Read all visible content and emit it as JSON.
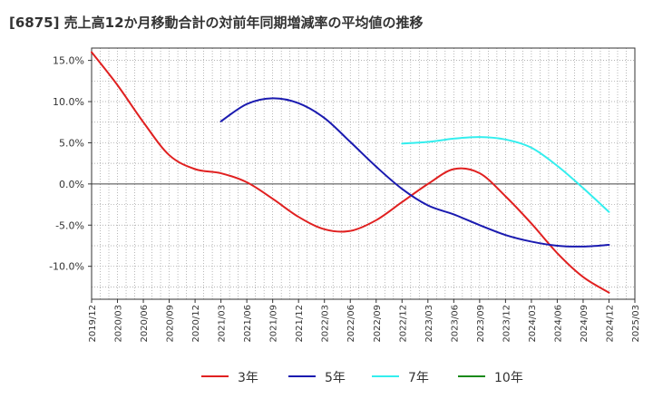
{
  "chart_data": {
    "type": "line",
    "title": "[6875]  売上高12か月移動合計の対前年同期増減率の平均値の推移",
    "xlabel": "",
    "ylabel": "",
    "x_ticks": [
      "2019/12",
      "2020/03",
      "2020/06",
      "2020/09",
      "2020/12",
      "2021/03",
      "2021/06",
      "2021/09",
      "2021/12",
      "2022/03",
      "2022/06",
      "2022/09",
      "2022/12",
      "2023/03",
      "2023/06",
      "2023/09",
      "2023/12",
      "2024/03",
      "2024/06",
      "2024/09",
      "2024/12",
      "2025/03"
    ],
    "y_ticks": [
      "15.0%",
      "10.0%",
      "5.0%",
      "0.0%",
      "-5.0%",
      "-10.0%"
    ],
    "ylim": [
      -14.0,
      16.5
    ],
    "grid": true,
    "legend_position": "bottom",
    "series": [
      {
        "name": "3年",
        "color": "#e02020",
        "x": [
          "2019/12",
          "2020/03",
          "2020/06",
          "2020/09",
          "2020/12",
          "2021/03",
          "2021/06",
          "2021/09",
          "2021/12",
          "2022/03",
          "2022/06",
          "2022/09",
          "2022/12",
          "2023/03",
          "2023/06",
          "2023/09",
          "2023/12",
          "2024/03",
          "2024/06",
          "2024/09",
          "2024/12"
        ],
        "values": [
          16.0,
          12.0,
          7.5,
          3.5,
          1.8,
          1.3,
          0.2,
          -1.8,
          -4.0,
          -5.5,
          -5.7,
          -4.4,
          -2.2,
          0.0,
          1.8,
          1.3,
          -1.5,
          -4.8,
          -8.4,
          -11.3,
          -13.2
        ]
      },
      {
        "name": "5年",
        "color": "#1a1ab0",
        "x": [
          "2021/03",
          "2021/06",
          "2021/09",
          "2021/12",
          "2022/03",
          "2022/06",
          "2022/09",
          "2022/12",
          "2023/03",
          "2023/06",
          "2023/09",
          "2023/12",
          "2024/03",
          "2024/06",
          "2024/09",
          "2024/12"
        ],
        "values": [
          7.6,
          9.7,
          10.4,
          9.8,
          8.0,
          5.1,
          2.1,
          -0.6,
          -2.6,
          -3.7,
          -5.0,
          -6.2,
          -7.0,
          -7.5,
          -7.6,
          -7.4
        ]
      },
      {
        "name": "7年",
        "color": "#33eeee",
        "x": [
          "2022/12",
          "2023/03",
          "2023/06",
          "2023/09",
          "2023/12",
          "2024/03",
          "2024/06",
          "2024/09",
          "2024/12"
        ],
        "values": [
          4.9,
          5.1,
          5.5,
          5.7,
          5.4,
          4.4,
          2.2,
          -0.5,
          -3.4
        ]
      },
      {
        "name": "10年",
        "color": "#1a8a1a",
        "x": [],
        "values": []
      }
    ]
  }
}
